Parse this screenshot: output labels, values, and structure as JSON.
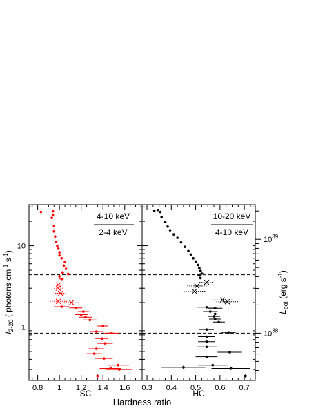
{
  "chart_data": {
    "type": "scatter",
    "xlabel": "Hardness ratio",
    "ylabel_left": {
      "pre": "I",
      "sub": "2-20",
      "post": " ( photons cm",
      "sup1": "-1",
      "mid": " s",
      "sup2": "-1",
      "end": ")"
    },
    "ylabel_right": {
      "pre": "L",
      "sub": "bol",
      "post": " (erg s",
      "sup": "-1",
      "end": ")"
    },
    "y_scale": "log",
    "ylim": [
      0.22,
      32
    ],
    "y_ticks": [
      1,
      10
    ],
    "y_tick_labels": [
      "1",
      "10"
    ],
    "y_right_ticks": [
      {
        "value": 0.84,
        "base": "10",
        "exp": "38"
      },
      {
        "value": 12.0,
        "base": "10",
        "exp": "39"
      }
    ],
    "hlines": [
      0.84,
      4.4
    ],
    "panels": [
      {
        "name": "SC",
        "xlabel": "SC",
        "ratio_num": "4-10 keV",
        "ratio_den": "2-4 keV",
        "xlim": [
          0.72,
          1.76
        ],
        "x_ticks": [
          0.8,
          1.0,
          1.2,
          1.4,
          1.6
        ],
        "x_tick_labels": [
          "0.8",
          "1",
          "1.2",
          "1.4",
          "1.6"
        ],
        "color": "#ff0000",
        "points": [
          {
            "x": 0.83,
            "y": 26,
            "xerr": 0.0,
            "yerr": 0.0
          },
          {
            "x": 0.94,
            "y": 26.5,
            "xerr": 0.0,
            "yerr": 0.0
          },
          {
            "x": 0.94,
            "y": 24,
            "xerr": 0.0,
            "yerr": 0.0
          },
          {
            "x": 0.93,
            "y": 22,
            "xerr": 0.0,
            "yerr": 0.0
          },
          {
            "x": 0.95,
            "y": 17.5,
            "xerr": 0.0,
            "yerr": 0.0
          },
          {
            "x": 0.95,
            "y": 15,
            "xerr": 0.0,
            "yerr": 0.0
          },
          {
            "x": 0.96,
            "y": 13,
            "xerr": 0.0,
            "yerr": 0.0
          },
          {
            "x": 0.97,
            "y": 11.2,
            "xerr": 0.0,
            "yerr": 0.0
          },
          {
            "x": 0.98,
            "y": 10,
            "xerr": 0.0,
            "yerr": 0.0
          },
          {
            "x": 0.99,
            "y": 9.2,
            "xerr": 0.0,
            "yerr": 0.0
          },
          {
            "x": 1.0,
            "y": 8.3,
            "xerr": 0.0,
            "yerr": 0.0
          },
          {
            "x": 1.0,
            "y": 7.6,
            "xerr": 0.0,
            "yerr": 0.0
          },
          {
            "x": 1.02,
            "y": 7.0,
            "xerr": 0.0,
            "yerr": 0.0
          },
          {
            "x": 1.05,
            "y": 6.3,
            "xerr": 0.0,
            "yerr": 0.0
          },
          {
            "x": 1.04,
            "y": 5.7,
            "xerr": 0.0,
            "yerr": 0.0
          },
          {
            "x": 1.06,
            "y": 5.2,
            "xerr": 0.01,
            "yerr": 0.0
          },
          {
            "x": 1.03,
            "y": 4.7,
            "xerr": 0.01,
            "yerr": 0.0
          },
          {
            "x": 1.08,
            "y": 4.5,
            "xerr": 0.01,
            "yerr": 0.0
          },
          {
            "x": 1.0,
            "y": 4.2,
            "xerr": 0.01,
            "yerr": 0.0
          },
          {
            "x": 1.02,
            "y": 3.9,
            "xerr": 0.02,
            "yerr": 0.0
          },
          {
            "x": 1.02,
            "y": 1.78,
            "xerr": 0.07,
            "yerr": 0.0
          },
          {
            "x": 1.15,
            "y": 1.72,
            "xerr": 0.06,
            "yerr": 0.0
          },
          {
            "x": 1.22,
            "y": 1.55,
            "xerr": 0.05,
            "yerr": 0.0
          },
          {
            "x": 1.2,
            "y": 1.42,
            "xerr": 0.06,
            "yerr": 0.0
          },
          {
            "x": 1.24,
            "y": 1.32,
            "xerr": 0.06,
            "yerr": 0.0
          },
          {
            "x": 1.28,
            "y": 1.22,
            "xerr": 0.06,
            "yerr": 0.0
          },
          {
            "x": 1.4,
            "y": 1.03,
            "xerr": 0.05,
            "yerr": 0.0
          },
          {
            "x": 1.34,
            "y": 0.88,
            "xerr": 0.06,
            "yerr": 0.0
          },
          {
            "x": 1.48,
            "y": 0.84,
            "xerr": 0.07,
            "yerr": 0.0
          },
          {
            "x": 1.39,
            "y": 0.72,
            "xerr": 0.06,
            "yerr": 0.0
          },
          {
            "x": 1.42,
            "y": 0.63,
            "xerr": 0.07,
            "yerr": 0.0
          },
          {
            "x": 1.34,
            "y": 0.54,
            "xerr": 0.07,
            "yerr": 0.0
          },
          {
            "x": 1.32,
            "y": 0.47,
            "xerr": 0.07,
            "yerr": 0.0
          },
          {
            "x": 1.41,
            "y": 0.41,
            "xerr": 0.08,
            "yerr": 0.0
          },
          {
            "x": 1.54,
            "y": 0.34,
            "xerr": 0.1,
            "yerr": 0.0
          },
          {
            "x": 1.47,
            "y": 0.31,
            "xerr": 0.1,
            "yerr": 0.0
          },
          {
            "x": 1.55,
            "y": 0.3,
            "xerr": 0.12,
            "yerr": 0.0
          },
          {
            "x": 1.35,
            "y": 0.25,
            "xerr": 0.12,
            "yerr": 0.015
          }
        ],
        "crosses": [
          {
            "x": 0.99,
            "y": 3.3,
            "xerr": 0.04
          },
          {
            "x": 0.99,
            "y": 3.0,
            "xerr": 0.04
          },
          {
            "x": 1.01,
            "y": 2.6,
            "xerr": 0.05
          },
          {
            "x": 1.11,
            "y": 2.0,
            "xerr": 0.07
          },
          {
            "x": 0.99,
            "y": 2.07,
            "xerr": 0.08
          }
        ]
      },
      {
        "name": "HC",
        "xlabel": "HC",
        "ratio_num": "10-20 keV",
        "ratio_den": "4-10 keV",
        "xlim": [
          0.28,
          0.745
        ],
        "x_ticks": [
          0.3,
          0.4,
          0.5,
          0.6,
          0.7
        ],
        "x_tick_labels": [
          "0.3",
          "0.4",
          "0.5",
          "0.6",
          "0.7"
        ],
        "color": "#000000",
        "points": [
          {
            "x": 0.33,
            "y": 27,
            "xerr": 0.0,
            "yerr": 0.0
          },
          {
            "x": 0.345,
            "y": 27.5,
            "xerr": 0.0,
            "yerr": 0.0
          },
          {
            "x": 0.355,
            "y": 26,
            "xerr": 0.0,
            "yerr": 0.0
          },
          {
            "x": 0.36,
            "y": 22.5,
            "xerr": 0.0,
            "yerr": 0.0
          },
          {
            "x": 0.375,
            "y": 19.5,
            "xerr": 0.0,
            "yerr": 0.0
          },
          {
            "x": 0.385,
            "y": 17.2,
            "xerr": 0.0,
            "yerr": 0.0
          },
          {
            "x": 0.395,
            "y": 15.5,
            "xerr": 0.0,
            "yerr": 0.0
          },
          {
            "x": 0.41,
            "y": 13.8,
            "xerr": 0.0,
            "yerr": 0.0
          },
          {
            "x": 0.425,
            "y": 12.5,
            "xerr": 0.0,
            "yerr": 0.0
          },
          {
            "x": 0.44,
            "y": 11.0,
            "xerr": 0.0,
            "yerr": 0.0
          },
          {
            "x": 0.455,
            "y": 9.7,
            "xerr": 0.0,
            "yerr": 0.0
          },
          {
            "x": 0.47,
            "y": 8.6,
            "xerr": 0.0,
            "yerr": 0.0
          },
          {
            "x": 0.48,
            "y": 7.8,
            "xerr": 0.0,
            "yerr": 0.0
          },
          {
            "x": 0.49,
            "y": 7.0,
            "xerr": 0.0,
            "yerr": 0.0
          },
          {
            "x": 0.5,
            "y": 6.4,
            "xerr": 0.0,
            "yerr": 0.0
          },
          {
            "x": 0.51,
            "y": 5.8,
            "xerr": 0.005,
            "yerr": 0.0
          },
          {
            "x": 0.515,
            "y": 5.3,
            "xerr": 0.005,
            "yerr": 0.0
          },
          {
            "x": 0.52,
            "y": 4.9,
            "xerr": 0.006,
            "yerr": 0.0
          },
          {
            "x": 0.525,
            "y": 4.55,
            "xerr": 0.008,
            "yerr": 0.0
          },
          {
            "x": 0.515,
            "y": 4.3,
            "xerr": 0.01,
            "yerr": 0.0
          },
          {
            "x": 0.52,
            "y": 4.0,
            "xerr": 0.015,
            "yerr": 0.0
          },
          {
            "x": 0.545,
            "y": 1.75,
            "xerr": 0.04,
            "yerr": 0.0
          },
          {
            "x": 0.58,
            "y": 1.7,
            "xerr": 0.03,
            "yerr": 0.0
          },
          {
            "x": 0.56,
            "y": 1.55,
            "xerr": 0.03,
            "yerr": 0.0
          },
          {
            "x": 0.58,
            "y": 1.45,
            "xerr": 0.03,
            "yerr": 0.0
          },
          {
            "x": 0.575,
            "y": 1.35,
            "xerr": 0.025,
            "yerr": 0.0
          },
          {
            "x": 0.58,
            "y": 1.25,
            "xerr": 0.025,
            "yerr": 0.0
          },
          {
            "x": 0.595,
            "y": 1.15,
            "xerr": 0.025,
            "yerr": 0.0
          },
          {
            "x": 0.545,
            "y": 0.93,
            "xerr": 0.03,
            "yerr": 0.0
          },
          {
            "x": 0.635,
            "y": 0.86,
            "xerr": 0.03,
            "yerr": 0.0
          },
          {
            "x": 0.545,
            "y": 0.76,
            "xerr": 0.035,
            "yerr": 0.0
          },
          {
            "x": 0.545,
            "y": 0.66,
            "xerr": 0.035,
            "yerr": 0.0
          },
          {
            "x": 0.545,
            "y": 0.57,
            "xerr": 0.04,
            "yerr": 0.0
          },
          {
            "x": 0.64,
            "y": 0.49,
            "xerr": 0.05,
            "yerr": 0.0
          },
          {
            "x": 0.545,
            "y": 0.43,
            "xerr": 0.045,
            "yerr": 0.0
          },
          {
            "x": 0.57,
            "y": 0.34,
            "xerr": 0.06,
            "yerr": 0.0
          },
          {
            "x": 0.45,
            "y": 0.32,
            "xerr": 0.09,
            "yerr": 0.015
          },
          {
            "x": 0.645,
            "y": 0.31,
            "xerr": 0.08,
            "yerr": 0.015
          },
          {
            "x": 0.705,
            "y": 0.25,
            "xerr": 0.1,
            "yerr": 0.015
          }
        ],
        "crosses": [
          {
            "x": 0.545,
            "y": 3.55,
            "xerr": 0.03
          },
          {
            "x": 0.505,
            "y": 3.2,
            "xerr": 0.04
          },
          {
            "x": 0.495,
            "y": 2.75,
            "xerr": 0.045
          },
          {
            "x": 0.61,
            "y": 2.15,
            "xerr": 0.04
          },
          {
            "x": 0.63,
            "y": 2.05,
            "xerr": 0.045
          }
        ]
      }
    ]
  }
}
